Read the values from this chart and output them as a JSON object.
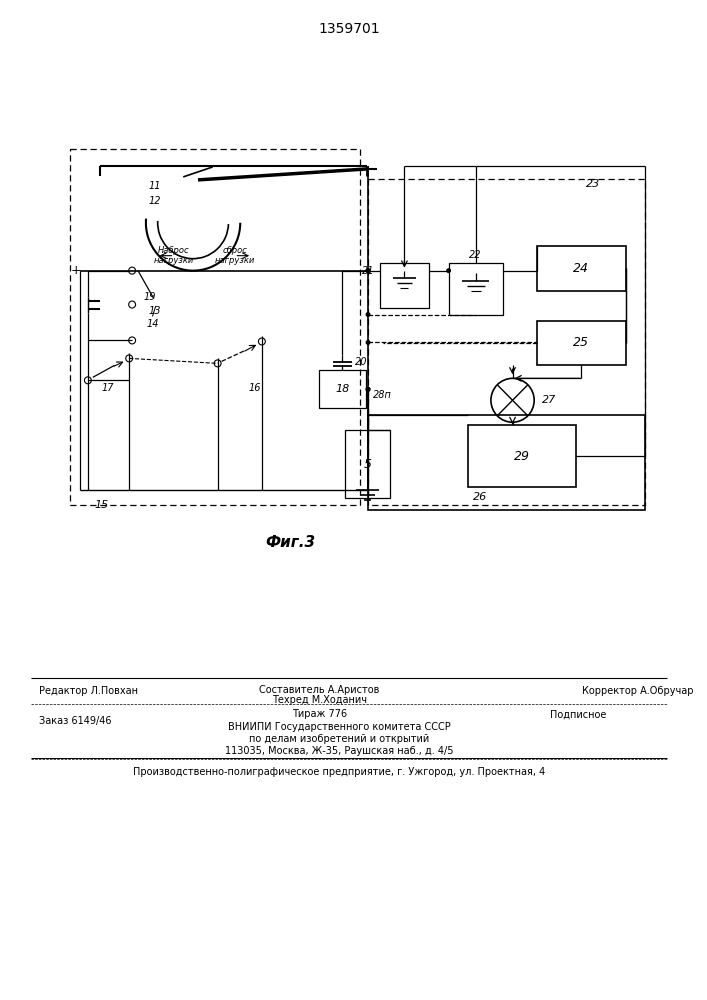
{
  "title": "1359701",
  "background_color": "#ffffff",
  "line_color": "#000000",
  "footer": {
    "col1_line1": "Редактор Л.Повхан",
    "col2_line1": "Составитель А.Аристов",
    "col2_line2": "Техред М.Ходанич",
    "col3_line1": "Корректор А.Обручар",
    "order": "Заказ 6149/46",
    "tirazh": "Тираж 776",
    "podpisnoe": "Подписное",
    "vniip": "ВНИИПИ Государственного комитета СССР",
    "po_delam": "по делам изобретений и открытий",
    "address": "113035, Москва, Ж-35, Раушская наб., д. 4/5",
    "proizv": "Производственно-полиграфическое предприятие, г. Ужгород, ул. Проектная, 4"
  }
}
